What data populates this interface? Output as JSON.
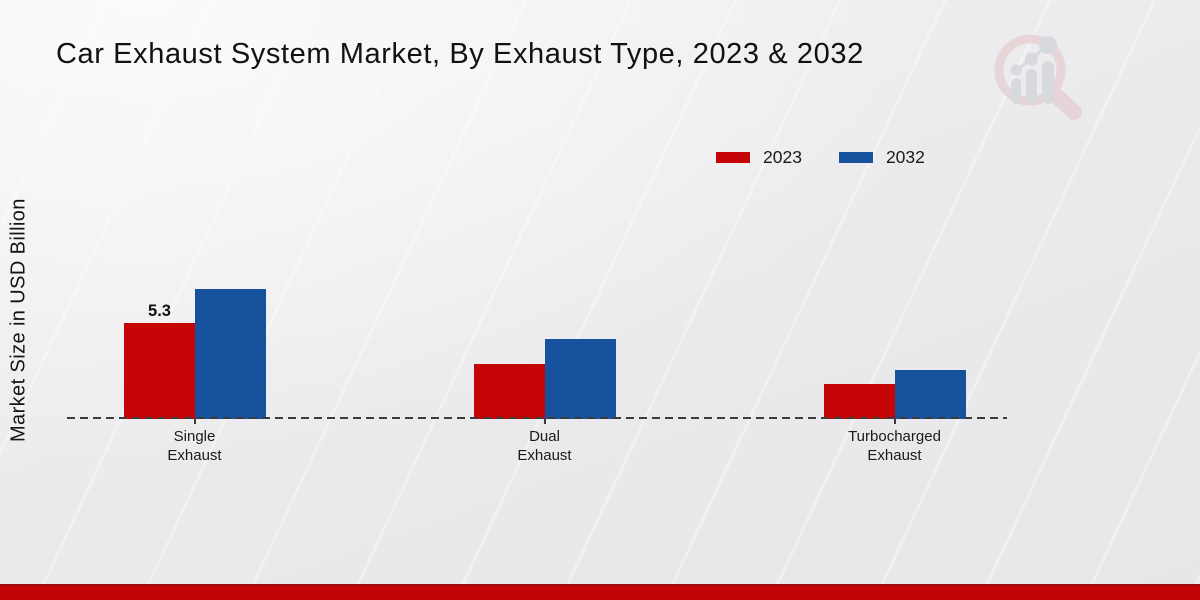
{
  "header": {
    "title": "Car Exhaust System Market, By Exhaust Type, 2023 & 2032"
  },
  "chart": {
    "y_axis_label": "Market Size in USD Billion",
    "x_tick_labels": [
      "Single\nExhaust",
      "Dual\nExhaust",
      "Turbocharged\nExhaust"
    ]
  },
  "legend": {
    "items": [
      {
        "label": "2023",
        "color": "#c40405"
      },
      {
        "label": "2032",
        "color": "#16529e"
      }
    ]
  },
  "chart_data": {
    "type": "bar",
    "title": "Car Exhaust System Market, By Exhaust Type, 2023 & 2032",
    "categories": [
      "Single Exhaust",
      "Dual Exhaust",
      "Turbocharged Exhaust"
    ],
    "series": [
      {
        "name": "2023",
        "color": "#c40405",
        "values": [
          5.3,
          3.0,
          1.9
        ]
      },
      {
        "name": "2032",
        "color": "#16529e",
        "values": [
          7.2,
          4.4,
          2.7
        ]
      }
    ],
    "value_labels": [
      {
        "series_index": 0,
        "category_index": 0,
        "text": "5.3"
      }
    ],
    "xlabel": "",
    "ylabel": "Market Size in USD Billion",
    "ylim": [
      0,
      7.5
    ],
    "grid": false,
    "legend_position": "top-right",
    "baseline_style": "dashed"
  },
  "watermark": {
    "name": "market-research-magnifier-logo"
  },
  "footer": {
    "accent_color": "#c10404"
  }
}
